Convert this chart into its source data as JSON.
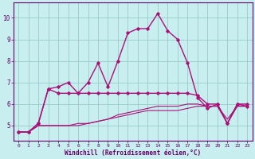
{
  "xlabel": "Windchill (Refroidissement éolien,°C)",
  "bg_color": "#c8eef0",
  "line_color": "#aa1177",
  "grid_color": "#99cccc",
  "xlim": [
    -0.5,
    23.5
  ],
  "ylim": [
    4.3,
    10.7
  ],
  "xticks": [
    0,
    1,
    2,
    3,
    4,
    5,
    6,
    7,
    8,
    9,
    10,
    11,
    12,
    13,
    14,
    15,
    16,
    17,
    18,
    19,
    20,
    21,
    22,
    23
  ],
  "yticks": [
    5,
    6,
    7,
    8,
    9,
    10
  ],
  "lines": [
    {
      "x": [
        0,
        1,
        2,
        3,
        4,
        5,
        6,
        7,
        8,
        9,
        10,
        11,
        12,
        13,
        14,
        15,
        16,
        17,
        18,
        19,
        20,
        21,
        22,
        23
      ],
      "y": [
        4.7,
        4.7,
        5.1,
        6.7,
        6.8,
        7.0,
        6.5,
        7.0,
        7.9,
        6.8,
        8.0,
        9.3,
        9.5,
        9.5,
        10.2,
        9.4,
        9.0,
        7.9,
        6.3,
        5.8,
        6.0,
        5.1,
        6.0,
        6.0
      ],
      "marker": true,
      "lw": 1.0
    },
    {
      "x": [
        0,
        1,
        2,
        3,
        4,
        5,
        6,
        7,
        8,
        9,
        10,
        11,
        12,
        13,
        14,
        15,
        16,
        17,
        18,
        19,
        20,
        21,
        22,
        23
      ],
      "y": [
        4.7,
        4.7,
        5.1,
        6.7,
        6.5,
        6.5,
        6.5,
        6.5,
        6.5,
        6.5,
        6.5,
        6.5,
        6.5,
        6.5,
        6.5,
        6.5,
        6.5,
        6.5,
        6.4,
        6.0,
        6.0,
        5.1,
        6.0,
        5.9
      ],
      "marker": true,
      "lw": 1.0
    },
    {
      "x": [
        0,
        1,
        2,
        3,
        4,
        5,
        6,
        7,
        8,
        9,
        10,
        11,
        12,
        13,
        14,
        15,
        16,
        17,
        18,
        19,
        20,
        21,
        22,
        23
      ],
      "y": [
        4.7,
        4.7,
        5.0,
        5.0,
        5.0,
        5.0,
        5.0,
        5.1,
        5.2,
        5.3,
        5.5,
        5.6,
        5.7,
        5.8,
        5.9,
        5.9,
        5.9,
        6.0,
        6.0,
        5.9,
        5.9,
        5.3,
        5.9,
        5.9
      ],
      "marker": false,
      "lw": 0.8
    },
    {
      "x": [
        0,
        1,
        2,
        3,
        4,
        5,
        6,
        7,
        8,
        9,
        10,
        11,
        12,
        13,
        14,
        15,
        16,
        17,
        18,
        19,
        20,
        21,
        22,
        23
      ],
      "y": [
        4.7,
        4.7,
        5.0,
        5.0,
        5.0,
        5.0,
        5.1,
        5.1,
        5.2,
        5.3,
        5.4,
        5.5,
        5.6,
        5.7,
        5.7,
        5.7,
        5.7,
        5.8,
        5.9,
        5.9,
        5.9,
        5.1,
        5.9,
        5.9
      ],
      "marker": false,
      "lw": 0.8
    }
  ]
}
